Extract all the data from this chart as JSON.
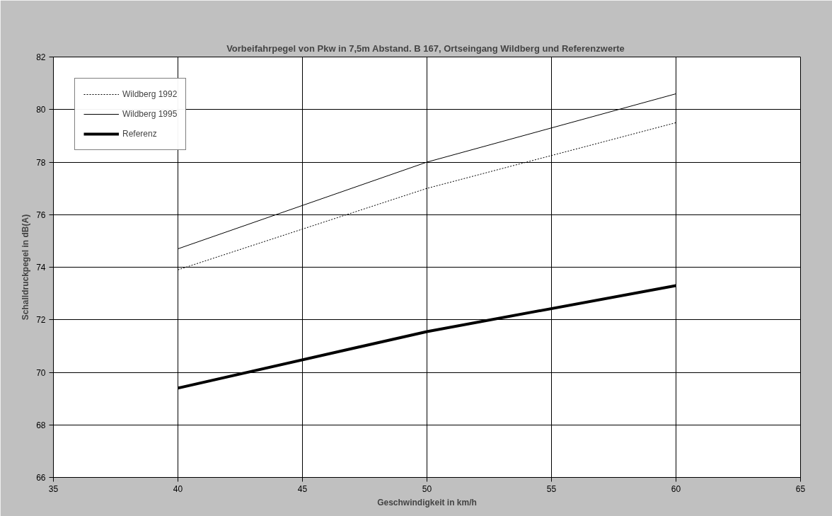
{
  "chart_data": {
    "type": "line",
    "title": "Vorbeifahrpegel von Pkw in 7,5m Abstand. B 167,  Ortseingang Wildberg und Referenzwerte",
    "xlabel": "Geschwindigkeit in km/h",
    "ylabel": "Schalldruckpegel in dB(A)",
    "x": [
      40,
      50,
      60
    ],
    "series": [
      {
        "name": "Wildberg 1992",
        "color": "#000000",
        "values": [
          73.9,
          77.0,
          79.5
        ],
        "line_style": "dotted"
      },
      {
        "name": "Wildberg 1995",
        "color": "#000000",
        "values": [
          74.7,
          78.0,
          80.6
        ],
        "line_style": "solid"
      },
      {
        "name": "Referenz",
        "color": "#000000",
        "values": [
          69.4,
          71.55,
          73.3
        ],
        "line_style": "solid"
      }
    ],
    "xlim": [
      35,
      65
    ],
    "xticks": [
      35,
      40,
      45,
      50,
      55,
      60,
      65
    ],
    "ylim": [
      66,
      82
    ],
    "yticks": [
      66,
      68,
      70,
      72,
      74,
      76,
      78,
      80,
      82
    ],
    "grid": true,
    "legend": "top left",
    "marker": "none"
  }
}
